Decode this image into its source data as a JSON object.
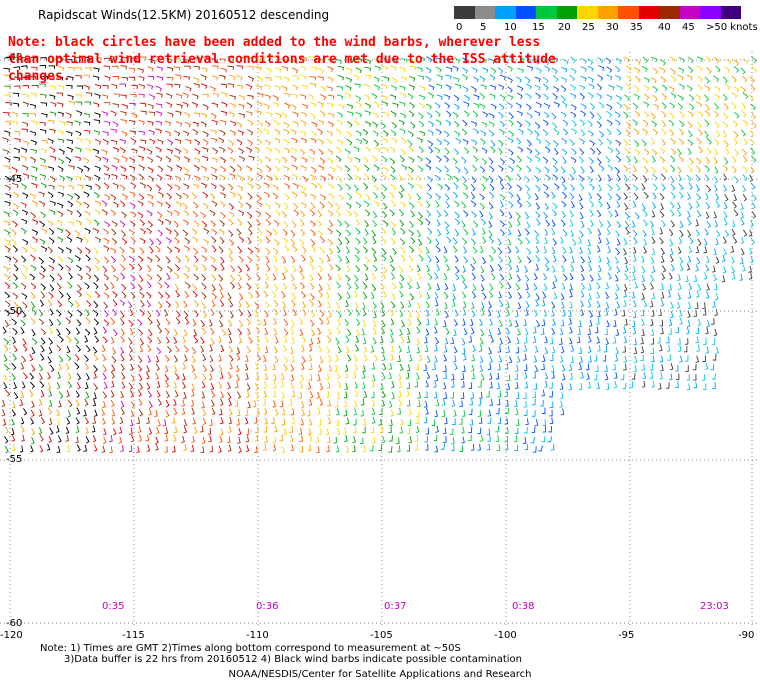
{
  "title": "Rapidscat Winds(12.5KM) 20160512 descending",
  "note": "Note: black circles have been added to the wind barbs, wherever less than optimal wind retrieval conditions are met due to the ISS attitude changes.",
  "legend": {
    "colors": [
      "#3c3c3c",
      "#8c8c8c",
      "#00a0ff",
      "#0050ff",
      "#00c83c",
      "#00a000",
      "#ffd400",
      "#ffa000",
      "#ff5000",
      "#e00000",
      "#a02800",
      "#c800c8",
      "#8c00ff",
      "#400080"
    ],
    "labels": [
      "0",
      "5",
      "10",
      "15",
      "20",
      "25",
      "30",
      "35",
      "40",
      "45",
      ">50 knots"
    ]
  },
  "map": {
    "lon_labels": [
      "-120",
      "-115",
      "-110",
      "-105",
      "-100",
      "-95",
      "-90"
    ],
    "lat_labels": [
      "-40",
      "-45",
      "-50",
      "-55",
      "-60"
    ],
    "time_labels": [
      "0:35",
      "0:36",
      "0:37",
      "0:38",
      "23:03"
    ],
    "time_color": "#c000c0",
    "grid_color": "#888888"
  },
  "footnote_line1": "Note: 1) Times are GMT 2)Times along bottom correspond to measurement at ~50S",
  "footnote_line2": "3)Data buffer is 22 hrs from 20160512 4) Black wind barbs indicate possible contamination",
  "credit": "NOAA/NESDIS/Center for Satellite Applications and Research"
}
